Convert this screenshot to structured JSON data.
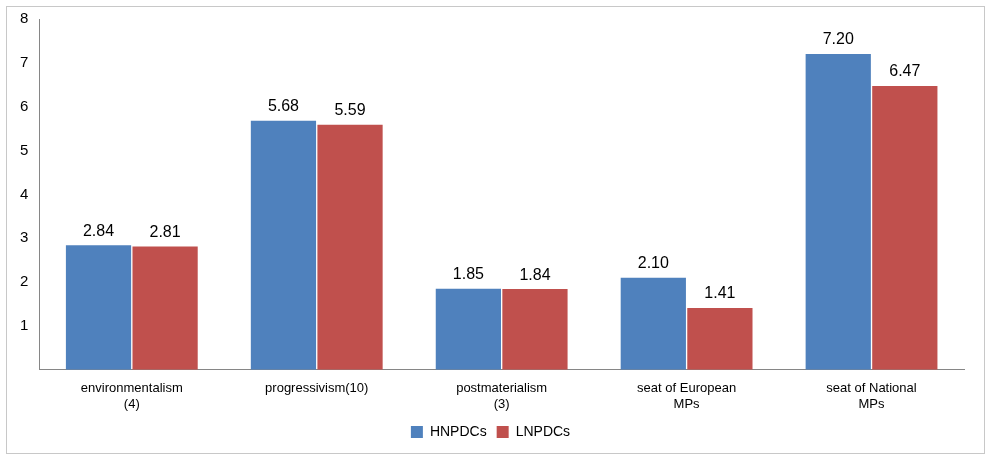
{
  "chart_data": {
    "type": "bar",
    "categories": [
      "environmentalism (4)",
      "progressivism(10)",
      "postmaterialism (3)",
      "seat of European MPs",
      "seat of National MPs"
    ],
    "series": [
      {
        "name": "HNPDCs",
        "color": "#4f81bd",
        "values": [
          2.84,
          5.68,
          1.85,
          2.1,
          7.2
        ],
        "value_labels": [
          "2.84",
          "5.68",
          "1.85",
          "2.10",
          "7.20"
        ]
      },
      {
        "name": "LNPDCs",
        "color": "#c0504d",
        "values": [
          2.81,
          5.59,
          1.84,
          1.41,
          6.47
        ],
        "value_labels": [
          "2.81",
          "5.59",
          "1.84",
          "1.41",
          "6.47"
        ]
      }
    ],
    "ylim": [
      0,
      8
    ],
    "yticks": [
      1,
      2,
      3,
      4,
      5,
      6,
      7,
      8
    ],
    "grid": false,
    "legend": "bottom",
    "data_labels": true
  }
}
